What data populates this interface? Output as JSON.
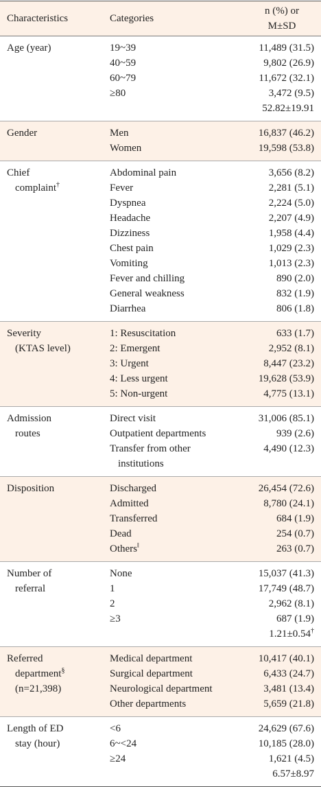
{
  "header": {
    "characteristic": "Characteristics",
    "category": "Categories",
    "value": [
      "n (%) or",
      "M±SD"
    ]
  },
  "groups": [
    {
      "label": [
        {
          "text": "Age (year)"
        }
      ],
      "rows": [
        {
          "category": [
            "19~39"
          ],
          "value": "11,489 (31.5)"
        },
        {
          "category": [
            "40~59"
          ],
          "value": "9,802 (26.9)"
        },
        {
          "category": [
            "60~79"
          ],
          "value": "11,672 (32.1)"
        },
        {
          "category": [
            "≥80"
          ],
          "value": "3,472 (9.5)"
        },
        {
          "value": "52.82±19.91"
        }
      ]
    },
    {
      "label": [
        {
          "text": "Gender"
        }
      ],
      "rows": [
        {
          "category": [
            "Men"
          ],
          "value": "16,837 (46.2)"
        },
        {
          "category": [
            "Women"
          ],
          "value": "19,598 (53.8)"
        }
      ]
    },
    {
      "label": [
        {
          "text": "Chief"
        },
        {
          "text": "complaint",
          "sup": "†"
        }
      ],
      "rows": [
        {
          "category": [
            "Abdominal pain"
          ],
          "value": "3,656 (8.2)"
        },
        {
          "category": [
            "Fever"
          ],
          "value": "2,281 (5.1)"
        },
        {
          "category": [
            "Dyspnea"
          ],
          "value": "2,224 (5.0)"
        },
        {
          "category": [
            "Headache"
          ],
          "value": "2,207 (4.9)"
        },
        {
          "category": [
            "Dizziness"
          ],
          "value": "1,958 (4.4)"
        },
        {
          "category": [
            "Chest pain"
          ],
          "value": "1,029 (2.3)"
        },
        {
          "category": [
            "Vomiting"
          ],
          "value": "1,013 (2.3)"
        },
        {
          "category": [
            "Fever and chilling"
          ],
          "value": "890 (2.0)"
        },
        {
          "category": [
            "General weakness"
          ],
          "value": "832 (1.9)"
        },
        {
          "category": [
            "Diarrhea"
          ],
          "value": "806 (1.8)"
        }
      ]
    },
    {
      "label": [
        {
          "text": "Severity"
        },
        {
          "text": "(KTAS level)"
        }
      ],
      "rows": [
        {
          "category": [
            "1: Resuscitation"
          ],
          "value": "633 (1.7)"
        },
        {
          "category": [
            "2: Emergent"
          ],
          "value": "2,952 (8.1)"
        },
        {
          "category": [
            "3: Urgent"
          ],
          "value": "8,447 (23.2)"
        },
        {
          "category": [
            "4: Less urgent"
          ],
          "value": "19,628 (53.9)"
        },
        {
          "category": [
            "5: Non-urgent"
          ],
          "value": "4,775 (13.1)"
        }
      ]
    },
    {
      "label": [
        {
          "text": "Admission"
        },
        {
          "text": "routes"
        }
      ],
      "rows": [
        {
          "category": [
            "Direct visit"
          ],
          "value": "31,006 (85.1)"
        },
        {
          "category": [
            "Outpatient departments"
          ],
          "value": "939 (2.6)"
        },
        {
          "category": [
            "Transfer from other",
            "institutions"
          ],
          "value": "4,490 (12.3)"
        }
      ]
    },
    {
      "label": [
        {
          "text": "Disposition"
        }
      ],
      "rows": [
        {
          "category": [
            "Discharged"
          ],
          "value": "26,454 (72.6)"
        },
        {
          "category": [
            "Admitted"
          ],
          "value": "8,780 (24.1)"
        },
        {
          "category": [
            "Transferred"
          ],
          "value": "684 (1.9)"
        },
        {
          "category": [
            "Dead"
          ],
          "value": "254 (0.7)"
        },
        {
          "category": [
            "Others"
          ],
          "category_sup": "‖",
          "value": "263 (0.7)"
        }
      ]
    },
    {
      "label": [
        {
          "text": "Number of"
        },
        {
          "text": "referral"
        }
      ],
      "rows": [
        {
          "category": [
            "None"
          ],
          "value": "15,037 (41.3)"
        },
        {
          "category": [
            "1"
          ],
          "value": "17,749 (48.7)"
        },
        {
          "category": [
            "2"
          ],
          "value": "2,962 (8.1)"
        },
        {
          "category": [
            "≥3"
          ],
          "value": "687 (1.9)"
        },
        {
          "value": "1.21±0.54",
          "value_sup": "†"
        }
      ]
    },
    {
      "label": [
        {
          "text": "Referred"
        },
        {
          "text": "department",
          "sup": "§"
        },
        {
          "text": "(n=21,398)"
        }
      ],
      "rows": [
        {
          "category": [
            "Medical department"
          ],
          "value": "10,417 (40.1)"
        },
        {
          "category": [
            "Surgical department"
          ],
          "value": "6,433 (24.7)"
        },
        {
          "category": [
            "Neurological department"
          ],
          "value": "3,481 (13.4)"
        },
        {
          "category": [
            "Other departments"
          ],
          "value": "5,659 (21.8)"
        }
      ]
    },
    {
      "label": [
        {
          "text": "Length of ED"
        },
        {
          "text": "stay (hour)"
        }
      ],
      "rows": [
        {
          "category": [
            "<6"
          ],
          "value": "24,629 (67.6)"
        },
        {
          "category": [
            "6~<24"
          ],
          "value": "10,185 (28.0)"
        },
        {
          "category": [
            "≥24"
          ],
          "value": "1,621 (4.5)"
        },
        {
          "value": "6.57±8.97"
        }
      ]
    }
  ]
}
